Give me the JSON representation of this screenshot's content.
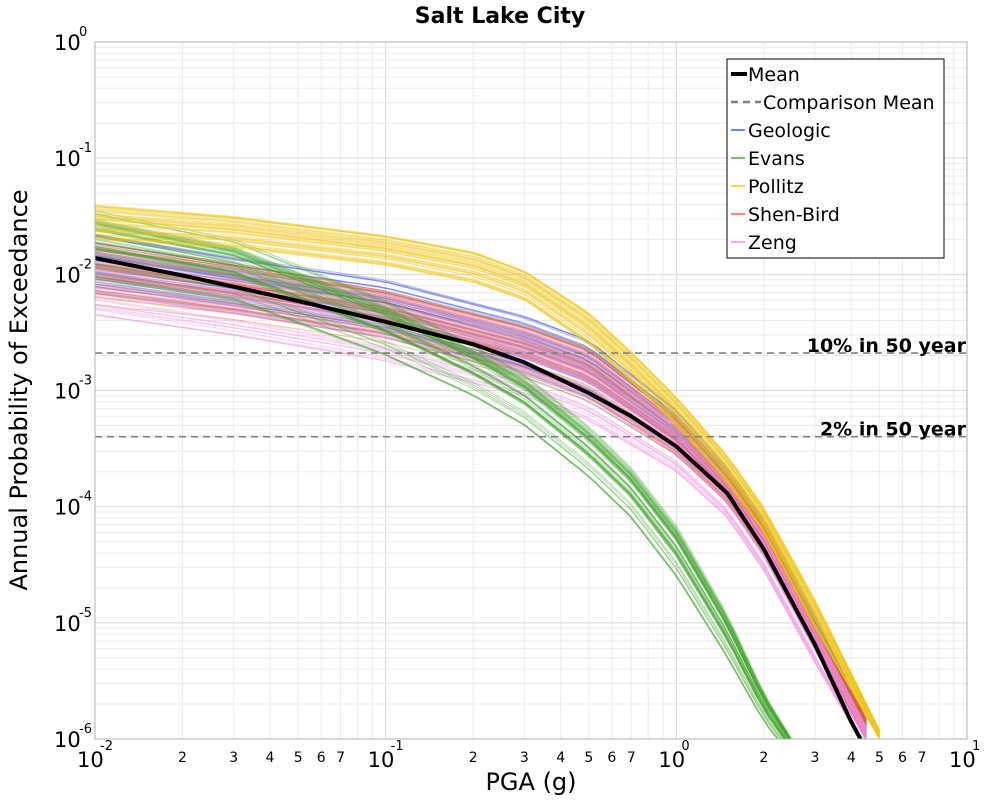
{
  "chart_data": {
    "type": "line",
    "title": "Salt Lake City",
    "xlabel": "PGA (g)",
    "ylabel": "Annual Probability of Exceedance",
    "x_scale": "log",
    "y_scale": "log",
    "xlim": [
      0.01,
      10
    ],
    "ylim": [
      1e-06,
      1
    ],
    "grid": true,
    "legend_position": "top-right",
    "x_ticks": [
      {
        "base": "10",
        "exp": "-2"
      },
      {
        "base": "10",
        "exp": "-1"
      },
      {
        "base": "10",
        "exp": "0"
      },
      {
        "base": "10",
        "exp": "1"
      }
    ],
    "y_ticks": [
      {
        "base": "10",
        "exp": "0"
      },
      {
        "base": "10",
        "exp": "-1"
      },
      {
        "base": "10",
        "exp": "-2"
      },
      {
        "base": "10",
        "exp": "-3"
      },
      {
        "base": "10",
        "exp": "-4"
      },
      {
        "base": "10",
        "exp": "-5"
      },
      {
        "base": "10",
        "exp": "-6"
      }
    ],
    "x_minor_labels": [
      "2",
      "3",
      "4",
      "5",
      "6",
      "7"
    ],
    "reference_lines": [
      {
        "label": "10% in 50 year",
        "y": 0.0021,
        "color": "#7f7f7f"
      },
      {
        "label": "2% in 50 year",
        "y": 0.0004,
        "color": "#7f7f7f"
      }
    ],
    "legend": [
      {
        "label": "Mean",
        "color": "#000000",
        "style": "solid-thick"
      },
      {
        "label": "Comparison Mean",
        "color": "#7f7f7f",
        "style": "dashed"
      },
      {
        "label": "Geologic",
        "color": "#3b4fd6",
        "style": "solid"
      },
      {
        "label": "Evans",
        "color": "#3fa62a",
        "style": "solid"
      },
      {
        "label": "Pollitz",
        "color": "#f2c718",
        "style": "solid"
      },
      {
        "label": "Shen-Bird",
        "color": "#e8642a",
        "style": "solid"
      },
      {
        "label": "Zeng",
        "color": "#f08ce0",
        "style": "solid"
      }
    ],
    "series": [
      {
        "name": "Mean",
        "color": "#000000",
        "x": [
          0.01,
          0.02,
          0.05,
          0.1,
          0.2,
          0.3,
          0.5,
          0.7,
          1.0,
          1.5,
          2.0,
          3.0,
          4.0,
          4.3
        ],
        "y": [
          0.0138,
          0.0098,
          0.0059,
          0.0039,
          0.0025,
          0.00175,
          0.00095,
          0.0006,
          0.00033,
          0.00013,
          4.3e-05,
          6.5e-06,
          1.4e-06,
          1e-06
        ]
      }
    ],
    "bands": [
      {
        "name": "Geologic",
        "color": "#3b4fd6",
        "x": [
          0.01,
          0.03,
          0.1,
          0.3,
          0.5,
          1.0,
          1.5,
          2.0,
          3.0,
          4.5
        ],
        "y_low": [
          0.0065,
          0.0045,
          0.0028,
          0.0013,
          0.0008,
          0.00028,
          0.00011,
          4e-05,
          6e-06,
          1e-06
        ],
        "y_high": [
          0.022,
          0.014,
          0.009,
          0.0045,
          0.0028,
          0.0007,
          0.00022,
          8e-05,
          1.2e-05,
          1.5e-06
        ]
      },
      {
        "name": "Shen-Bird",
        "color": "#e8642a",
        "x": [
          0.01,
          0.03,
          0.1,
          0.3,
          0.5,
          1.0,
          1.5,
          2.0,
          3.0,
          4.5
        ],
        "y_low": [
          0.0055,
          0.004,
          0.0025,
          0.0012,
          0.00075,
          0.00026,
          0.0001,
          3.6e-05,
          5.5e-06,
          1e-06
        ],
        "y_high": [
          0.019,
          0.013,
          0.0075,
          0.0038,
          0.0024,
          0.0006,
          0.0002,
          7e-05,
          1e-05,
          1.5e-06
        ]
      },
      {
        "name": "Zeng",
        "color": "#f08ce0",
        "x": [
          0.01,
          0.03,
          0.1,
          0.3,
          0.5,
          1.0,
          1.5,
          2.0,
          3.0,
          4.5
        ],
        "y_low": [
          0.0045,
          0.003,
          0.0018,
          0.0009,
          0.00055,
          0.0002,
          8e-05,
          2.8e-05,
          4.5e-06,
          8e-07
        ],
        "y_high": [
          0.016,
          0.011,
          0.0068,
          0.0035,
          0.0022,
          0.00055,
          0.00018,
          6e-05,
          9e-06,
          1.3e-06
        ]
      },
      {
        "name": "Evans",
        "color": "#3fa62a",
        "x": [
          0.01,
          0.03,
          0.1,
          0.2,
          0.3,
          0.5,
          0.7,
          1.0,
          1.5,
          2.0,
          2.5
        ],
        "y_low": [
          0.009,
          0.006,
          0.002,
          0.0009,
          0.0005,
          0.00018,
          8e-05,
          2.5e-05,
          5e-06,
          1.4e-06,
          7e-07
        ],
        "y_high": [
          0.035,
          0.02,
          0.006,
          0.0025,
          0.0014,
          0.0005,
          0.00022,
          7e-05,
          1.2e-05,
          2.5e-06,
          1e-06
        ]
      },
      {
        "name": "Pollitz",
        "color": "#f2c718",
        "x": [
          0.01,
          0.03,
          0.1,
          0.2,
          0.3,
          0.5,
          0.7,
          1.0,
          1.5,
          2.0,
          3.0,
          5.0
        ],
        "y_low": [
          0.02,
          0.017,
          0.012,
          0.0085,
          0.006,
          0.0025,
          0.0012,
          0.0005,
          0.00016,
          6e-05,
          9e-06,
          1e-06
        ],
        "y_high": [
          0.04,
          0.032,
          0.022,
          0.016,
          0.011,
          0.0048,
          0.0022,
          0.0009,
          0.00028,
          0.0001,
          1.6e-05,
          1.2e-06
        ]
      }
    ]
  }
}
